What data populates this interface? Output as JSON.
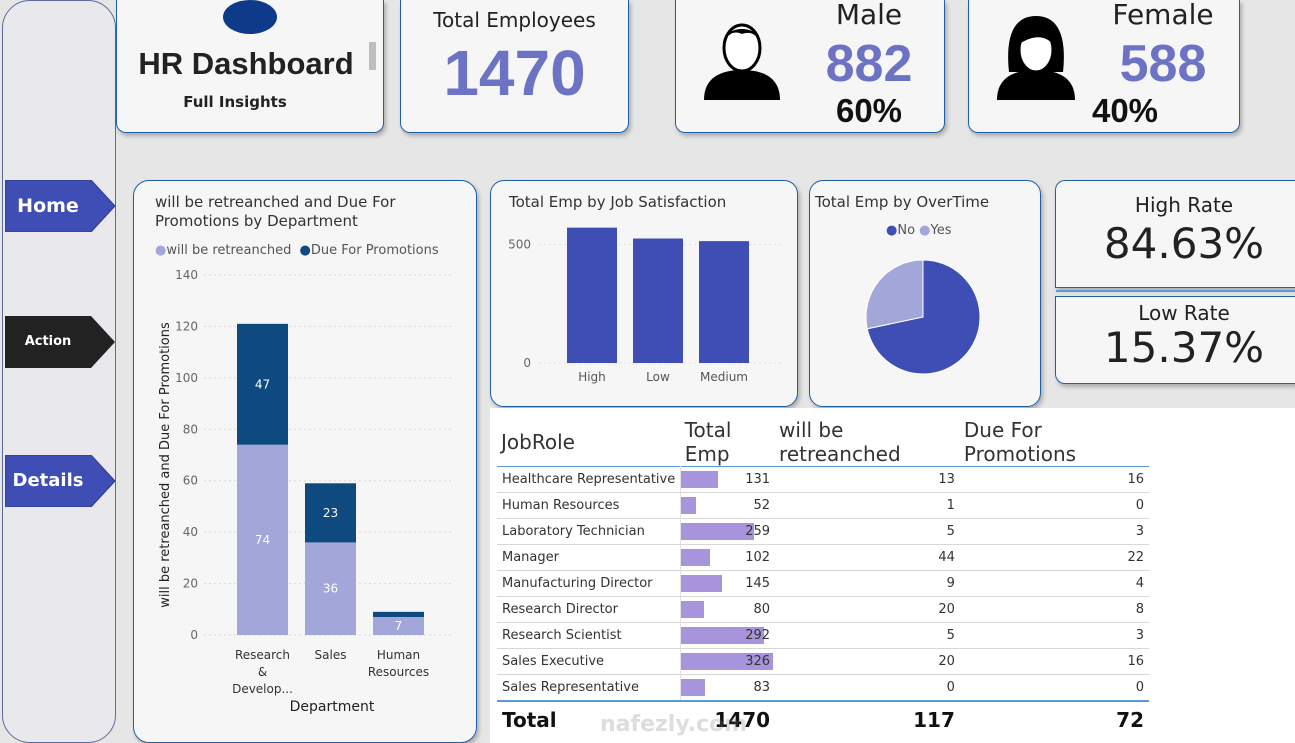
{
  "nav": {
    "home": "Home",
    "action": "Action",
    "details": "Details"
  },
  "header": {
    "title": "HR Dashboard",
    "subtitle": "Full Insights"
  },
  "kpis": {
    "total_label": "Total Employees",
    "total_value": "1470",
    "male_label": "Male",
    "male_value": "882",
    "male_pct": "60%",
    "female_label": "Female",
    "female_value": "588",
    "female_pct": "40%",
    "high_rate_label": "High Rate",
    "high_rate_value": "84.63%",
    "low_rate_label": "Low Rate",
    "low_rate_value": "15.37%"
  },
  "colors": {
    "accent": "#6d73c4",
    "light_series": "#a2a6d8",
    "dark_series": "#0e4a80",
    "bar": "#3f4eb5",
    "table_bar": "#a894dd"
  },
  "chart_data": [
    {
      "type": "bar",
      "stacked": true,
      "title": "will be retreanched and Due For Promotions by Department",
      "xlabel": "Department",
      "ylabel": "will be retreanched and Due For Promotions",
      "categories": [
        "Research & Develop...",
        "Sales",
        "Human Resources"
      ],
      "series": [
        {
          "name": "will be retreanched",
          "values": [
            74,
            36,
            7
          ]
        },
        {
          "name": "Due For Promotions",
          "values": [
            47,
            23,
            2
          ]
        }
      ],
      "ylim": [
        0,
        140
      ],
      "yticks": [
        0,
        20,
        40,
        60,
        80,
        100,
        120,
        140
      ],
      "legend": "top",
      "grid": true
    },
    {
      "type": "bar",
      "title": "Total Emp by Job Satisfaction",
      "categories": [
        "High",
        "Low",
        "Medium"
      ],
      "values": [
        572,
        526,
        515
      ],
      "ylim": [
        0,
        600
      ],
      "yticks": [
        0,
        500
      ]
    },
    {
      "type": "pie",
      "title": "Total Emp by OverTime",
      "labels": [
        "No",
        "Yes"
      ],
      "values": [
        1054,
        416
      ],
      "legend": "top"
    }
  ],
  "table": {
    "columns": [
      "JobRole",
      "Total Emp",
      "will be retreanched",
      "Due For Promotions"
    ],
    "rows": [
      {
        "role": "Healthcare Representative",
        "total": 131,
        "retrench": 13,
        "promo": 16
      },
      {
        "role": "Human Resources",
        "total": 52,
        "retrench": 1,
        "promo": 0
      },
      {
        "role": "Laboratory Technician",
        "total": 259,
        "retrench": 5,
        "promo": 3
      },
      {
        "role": "Manager",
        "total": 102,
        "retrench": 44,
        "promo": 22
      },
      {
        "role": "Manufacturing Director",
        "total": 145,
        "retrench": 9,
        "promo": 4
      },
      {
        "role": "Research Director",
        "total": 80,
        "retrench": 20,
        "promo": 8
      },
      {
        "role": "Research Scientist",
        "total": 292,
        "retrench": 5,
        "promo": 3
      },
      {
        "role": "Sales Executive",
        "total": 326,
        "retrench": 20,
        "promo": 16
      },
      {
        "role": "Sales Representative",
        "total": 83,
        "retrench": 0,
        "promo": 0
      }
    ],
    "total": {
      "label": "Total",
      "total": "1470",
      "retrench": "117",
      "promo": "72"
    }
  },
  "watermark": "nafezly.com"
}
